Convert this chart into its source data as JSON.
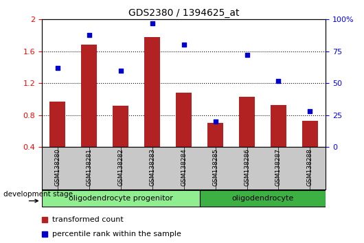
{
  "title": "GDS2380 / 1394625_at",
  "samples": [
    "GSM138280",
    "GSM138281",
    "GSM138282",
    "GSM138283",
    "GSM138284",
    "GSM138285",
    "GSM138286",
    "GSM138287",
    "GSM138288"
  ],
  "bar_values": [
    0.97,
    1.68,
    0.92,
    1.78,
    1.08,
    0.7,
    1.03,
    0.93,
    0.73
  ],
  "scatter_values": [
    62,
    88,
    60,
    97,
    80,
    20,
    72,
    52,
    28
  ],
  "bar_color": "#B22222",
  "scatter_color": "#0000CC",
  "ylim_left": [
    0.4,
    2.0
  ],
  "ylim_right": [
    0,
    100
  ],
  "yticks_left": [
    0.4,
    0.8,
    1.2,
    1.6,
    2.0
  ],
  "ytick_labels_left": [
    "0.4",
    "0.8",
    "1.2",
    "1.6",
    "2"
  ],
  "yticks_right": [
    0,
    25,
    50,
    75,
    100
  ],
  "ytick_labels_right": [
    "0",
    "25",
    "50",
    "75",
    "100%"
  ],
  "dotted_lines": [
    0.8,
    1.2,
    1.6
  ],
  "groups": [
    {
      "label": "oligodendrocyte progenitor",
      "start": 0,
      "end": 5
    },
    {
      "label": "oligodendrocyte",
      "start": 5,
      "end": 9
    }
  ],
  "group1_color": "#90EE90",
  "group2_color": "#3CB043",
  "dev_stage_label": "development stage",
  "legend_bar_label": "transformed count",
  "legend_scatter_label": "percentile rank within the sample",
  "bar_bottom": 0.4,
  "tick_area_bg": "#C8C8C8",
  "bar_width": 0.5
}
